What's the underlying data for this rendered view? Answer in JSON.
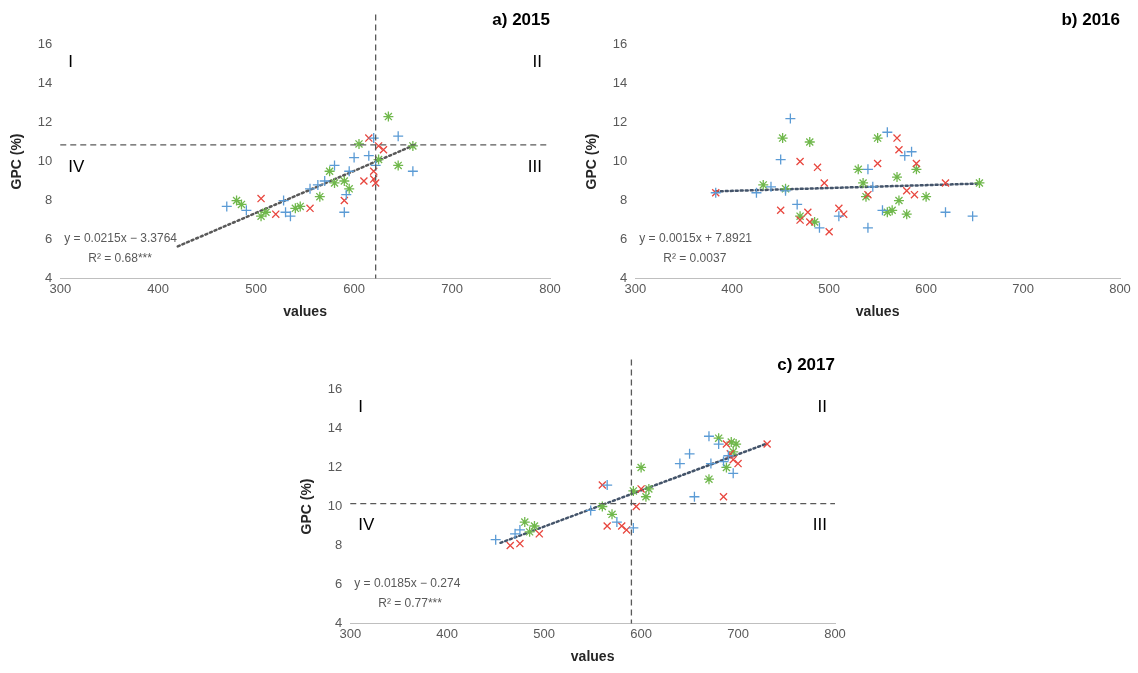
{
  "chart_data": [
    {
      "type": "scatter",
      "title": "a) 2015",
      "xlabel": "values",
      "ylabel": "GPC (%)",
      "xlim": [
        300,
        800
      ],
      "xticks": [
        300,
        400,
        500,
        600,
        700,
        800
      ],
      "ylim": [
        4,
        16
      ],
      "yticks": [
        4,
        6,
        8,
        10,
        12,
        14,
        16
      ],
      "grid": false,
      "legend": false,
      "series": [
        {
          "color": "#5b9bd5",
          "marker": "cross",
          "x": [
            470,
            490,
            528,
            530,
            535,
            555,
            563,
            570,
            580,
            590,
            592,
            595,
            600,
            615,
            620,
            622,
            645,
            660
          ],
          "values": [
            7.7,
            7.5,
            8.0,
            7.4,
            7.2,
            8.6,
            8.8,
            9.0,
            9.8,
            7.4,
            8.3,
            9.5,
            10.2,
            10.3,
            11.2,
            9.8,
            11.3,
            9.5
          ]
        },
        {
          "color": "#e8473f",
          "marker": "x",
          "x": [
            505,
            520,
            555,
            590,
            610,
            615,
            620,
            622,
            625,
            630,
            620
          ],
          "values": [
            8.1,
            7.3,
            7.6,
            8.0,
            9.0,
            11.2,
            9.5,
            8.9,
            10.8,
            10.6,
            9.1
          ]
        },
        {
          "color": "#70b84c",
          "x": [
            480,
            485,
            505,
            510,
            540,
            545,
            565,
            575,
            580,
            590,
            595,
            605,
            625,
            635,
            645,
            660
          ],
          "values": [
            8.0,
            7.8,
            7.2,
            7.4,
            7.6,
            7.7,
            8.2,
            9.5,
            8.9,
            9.0,
            8.6,
            10.9,
            10.1,
            12.3,
            9.8,
            10.8
          ]
        },
        {
          "type": "line",
          "color": "#595959",
          "line_style": "dotted",
          "marker": "none",
          "x": [
            420,
            660
          ],
          "values": [
            5.65,
            10.81
          ]
        }
      ],
      "ref_lines": [
        {
          "axis": "x",
          "value": 622,
          "color": "#595959",
          "line_style": "dashed"
        },
        {
          "axis": "y",
          "value": 10.85,
          "color": "#595959",
          "line_style": "dashed"
        }
      ],
      "annotations": [
        "I",
        "II",
        "IV",
        "III",
        "y = 0.0215x − 3.3764",
        "R² = 0.68***"
      ]
    },
    {
      "type": "scatter",
      "title": "b) 2016",
      "xlabel": "values",
      "ylabel": "GPC (%)",
      "xlim": [
        300,
        800
      ],
      "xticks": [
        300,
        400,
        500,
        600,
        700,
        800
      ],
      "ylim": [
        4,
        16
      ],
      "yticks": [
        4,
        6,
        8,
        10,
        12,
        14,
        16
      ],
      "grid": false,
      "legend": false,
      "series": [
        {
          "color": "#5b9bd5",
          "marker": "cross",
          "x": [
            383,
            425,
            440,
            450,
            460,
            455,
            467,
            490,
            510,
            540,
            540,
            545,
            560,
            578,
            585,
            620,
            648,
            555
          ],
          "values": [
            8.4,
            8.4,
            8.7,
            10.1,
            12.2,
            8.5,
            7.8,
            6.6,
            7.2,
            6.6,
            9.6,
            8.7,
            11.5,
            10.3,
            10.5,
            7.4,
            7.2,
            7.5
          ]
        },
        {
          "color": "#e8473f",
          "marker": "x",
          "x": [
            383,
            450,
            470,
            478,
            488,
            495,
            500,
            510,
            515,
            540,
            550,
            570,
            572,
            580,
            588,
            590,
            620,
            470,
            480
          ],
          "values": [
            8.4,
            7.5,
            10.0,
            7.4,
            9.7,
            8.9,
            6.4,
            7.6,
            7.3,
            8.3,
            9.9,
            11.2,
            10.6,
            8.5,
            8.3,
            9.9,
            8.9,
            7.0,
            6.9
          ]
        },
        {
          "color": "#70b84c",
          "x": [
            432,
            452,
            455,
            470,
            480,
            485,
            530,
            535,
            538,
            560,
            565,
            570,
            572,
            580,
            590,
            600,
            655,
            550
          ],
          "values": [
            8.8,
            11.2,
            8.6,
            7.2,
            11.0,
            6.9,
            9.6,
            8.9,
            8.2,
            7.4,
            7.5,
            9.2,
            8.0,
            7.3,
            9.6,
            8.2,
            8.9,
            11.2
          ]
        },
        {
          "type": "line",
          "color": "#44546a",
          "line_style": "dotted",
          "marker": "none",
          "x": [
            383,
            655
          ],
          "values": [
            8.47,
            8.87
          ]
        }
      ],
      "annotations": [
        "y = 0.0015x + 7.8921",
        "R² = 0.0037"
      ]
    },
    {
      "type": "scatter",
      "title": "c) 2017",
      "xlabel": "values",
      "ylabel": "GPC (%)",
      "xlim": [
        300,
        800
      ],
      "xticks": [
        300,
        400,
        500,
        600,
        700,
        800
      ],
      "ylim": [
        4,
        16
      ],
      "yticks": [
        4,
        6,
        8,
        10,
        12,
        14,
        16
      ],
      "grid": false,
      "legend": false,
      "series": [
        {
          "color": "#5b9bd5",
          "marker": "cross",
          "x": [
            450,
            470,
            475,
            548,
            565,
            575,
            592,
            640,
            650,
            655,
            670,
            672,
            680,
            685,
            695,
            690
          ],
          "values": [
            8.3,
            8.6,
            8.8,
            9.8,
            11.1,
            9.2,
            8.9,
            12.2,
            12.7,
            10.5,
            13.6,
            12.2,
            13.2,
            12.3,
            11.7,
            12.6
          ]
        },
        {
          "color": "#e8473f",
          "marker": "x",
          "x": [
            465,
            475,
            495,
            560,
            565,
            580,
            585,
            595,
            600,
            685,
            688,
            692,
            695,
            700,
            730
          ],
          "values": [
            8.0,
            8.1,
            8.6,
            11.1,
            9.0,
            9.0,
            8.8,
            10.0,
            10.9,
            10.5,
            13.2,
            12.7,
            12.4,
            12.2,
            13.2
          ]
        },
        {
          "color": "#70b84c",
          "x": [
            480,
            485,
            490,
            560,
            570,
            592,
            600,
            605,
            608,
            670,
            680,
            688,
            693,
            695,
            698
          ],
          "values": [
            9.2,
            8.7,
            9.0,
            10.0,
            9.6,
            10.8,
            12.0,
            10.5,
            10.9,
            11.4,
            13.5,
            12.0,
            13.3,
            12.8,
            13.2
          ]
        },
        {
          "type": "line",
          "color": "#44546a",
          "line_style": "dotted",
          "marker": "none",
          "x": [
            455,
            730
          ],
          "values": [
            8.14,
            13.23
          ]
        }
      ],
      "ref_lines": [
        {
          "axis": "x",
          "value": 590,
          "color": "#595959",
          "line_style": "dashed"
        },
        {
          "axis": "y",
          "value": 10.15,
          "color": "#595959",
          "line_style": "dashed"
        }
      ],
      "annotations": [
        "I",
        "II",
        "IV",
        "III",
        "y = 0.0185x − 0.274",
        "R² = 0.77***"
      ]
    }
  ]
}
